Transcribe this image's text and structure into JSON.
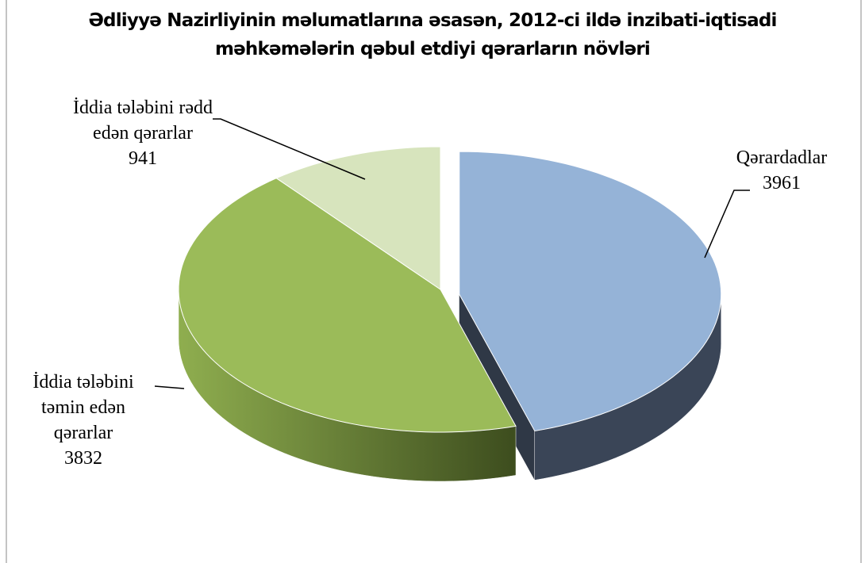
{
  "chart_data": {
    "type": "pie3d",
    "title": "Ədliyyə Nazirliyinin məlumatlarına əsasən, 2012-ci ildə inzibati-iqtisadi məhkəmələrin qəbul etdiyi qərarların növləri",
    "categories": [
      "Qərardadlar",
      "İddia tələbini təmin edən qərarlar",
      "İddia tələbini rədd edən qərarlar"
    ],
    "values": [
      3961,
      3832,
      941
    ],
    "colors": [
      "#95b3d7",
      "#9bbb59",
      "#d7e4bd"
    ]
  }
}
